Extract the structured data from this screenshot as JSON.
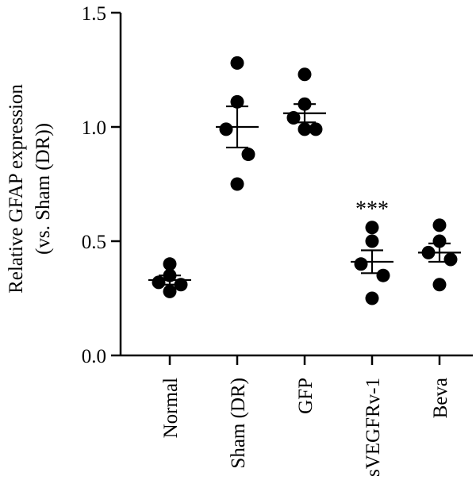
{
  "chart_data": {
    "type": "scatter",
    "title": "",
    "ylabel_lines": [
      "Relative GFAP expression",
      "(vs. Sham (DR))"
    ],
    "xlabel": "",
    "ylim": [
      0,
      1.5
    ],
    "yticks": [
      "0.0",
      "0.5",
      "1.0",
      "1.5"
    ],
    "ytick_values": [
      0,
      0.5,
      1.0,
      1.5
    ],
    "grid": false,
    "categories": [
      "Normal",
      "Sham (DR)",
      "GFP",
      "sVEGFRv-1",
      "Beva"
    ],
    "points": [
      [
        0.35,
        0.28,
        0.32,
        0.31,
        0.4
      ],
      [
        1.28,
        1.11,
        0.99,
        0.88,
        0.75
      ],
      [
        1.23,
        1.1,
        1.04,
        0.99,
        0.99
      ],
      [
        0.56,
        0.5,
        0.4,
        0.35,
        0.25
      ],
      [
        0.57,
        0.5,
        0.45,
        0.42,
        0.31
      ]
    ],
    "mean": [
      0.33,
      1.0,
      1.06,
      0.41,
      0.45
    ],
    "sem": [
      0.02,
      0.09,
      0.04,
      0.05,
      0.04
    ],
    "annotations": [
      {
        "category": "sVEGFRv-1",
        "text": "***"
      }
    ],
    "marker_color": "#000000"
  }
}
